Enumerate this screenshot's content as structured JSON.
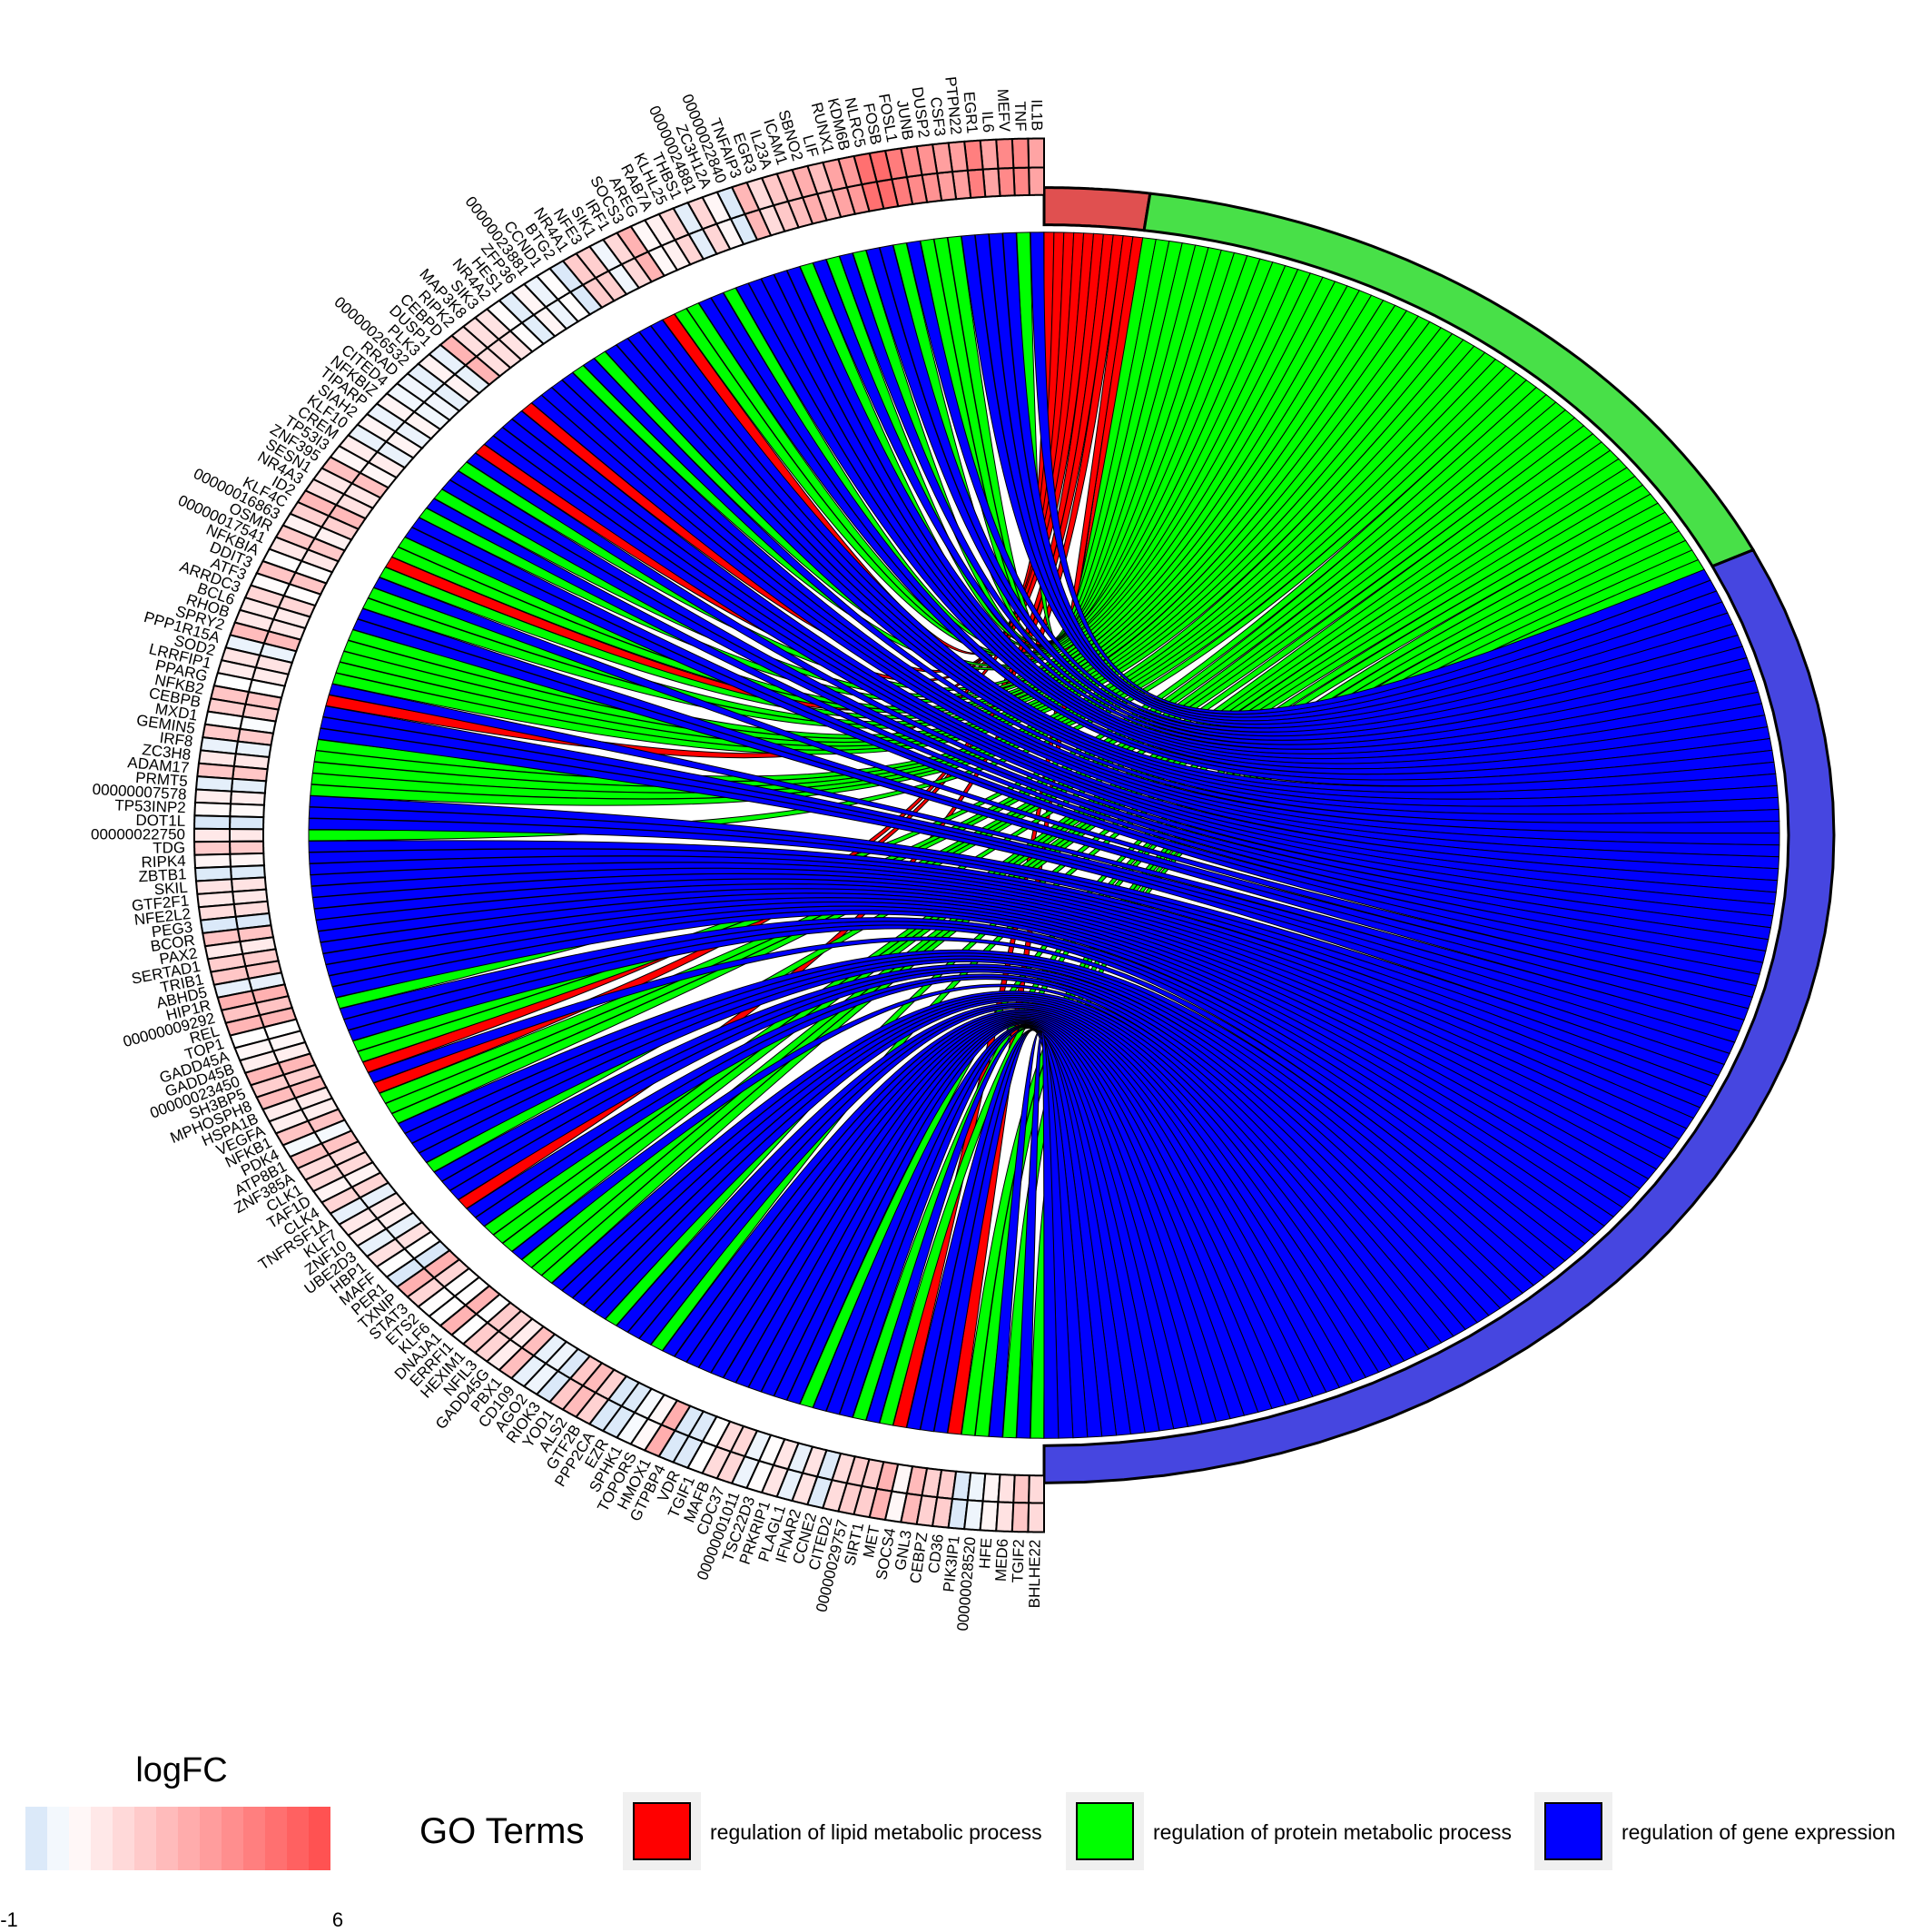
{
  "terms": [
    {
      "name": "regulation of lipid metabolic process",
      "color": "#ff0000",
      "arc_color": "#e05050",
      "gene_count": 18
    },
    {
      "name": "regulation of protein metabolic process",
      "color": "#00ff00",
      "arc_color": "#48e048",
      "gene_count": 131
    },
    {
      "name": "regulation of gene expression",
      "color": "#0000ff",
      "arc_color": "#4646e0",
      "gene_count": 271
    }
  ],
  "genes_top": [
    "IL1B",
    "TNF",
    "MEFV",
    "IL6",
    "EGR1",
    "PTPN22",
    "CSF3",
    "DUSP2",
    "JUNB",
    "FOSL1",
    "FOSB",
    "NLRC5",
    "KDM6B",
    "RUNX1",
    "LIF",
    "SBNO2",
    "ICAM1",
    "IL23A",
    "EGR3",
    "TNFAIP3",
    "00000022840",
    "ZC3H12A",
    "00000024881",
    "THBS1",
    "KLHL25",
    "RAB7A",
    "AREG",
    "SOCS3",
    "IRF1",
    "SIK1",
    "NFE3",
    "NR4A1",
    "BTG2",
    "CCND1",
    "00000023881",
    "ZFP36",
    "HES1",
    "NR4A2",
    "SIK3",
    "MAP3K8",
    "RIPK2",
    "CEBPD",
    "DUSP1",
    "PLK3",
    "00000026532",
    "RRAD",
    "CITED4",
    "NFKBIZ",
    "TIPARP",
    "SIAH2",
    "KLF10",
    "CREM",
    "TP53I3",
    "ZNF395",
    "SESN1",
    "NR4A3",
    "ID2",
    "KLF4C",
    "00000016863",
    "OSMR",
    "00000017541",
    "NFKBIA",
    "DDIT3",
    "ATF3",
    "ARRDC3",
    "BCL6",
    "RHOB",
    "SPRY2",
    "PPP1R15A",
    "SOD2",
    "LRRFIP1",
    "PPARG",
    "NFKB2",
    "CEBPB",
    "MXD1",
    "GEMIN5",
    "IRF8",
    "ZC3H8",
    "ADAM17",
    "PRMT5",
    "00000007578",
    "TP53INP2",
    "DOT1L",
    "00000022750",
    "TDG",
    "RIPK4",
    "ZBTB1",
    "SKIL",
    "GTF2F1",
    "NFE2L2",
    "PEG3",
    "BCOR",
    "PAX2",
    "SERTAD1",
    "TRIB1",
    "ABHD5",
    "HIP1R",
    "00000009292",
    "REL",
    "TOP1",
    "GADD45A",
    "GADD45B",
    "00000023450",
    "SH3BP5",
    "MPHOSPH8",
    "HSPA1B",
    "VEGFA",
    "NFKB1",
    "PDK4",
    "ATP8B1",
    "ZNF385A",
    "CLK1",
    "TAF1D",
    "CLK4",
    "TNFRSF1A",
    "KLF7",
    "ZNF10",
    "UBE2D3",
    "HBP1",
    "MAFF",
    "PER1",
    "TXNIP",
    "STAT3",
    "ETS2",
    "KLF6",
    "DNAJA1",
    "ERRFI1",
    "HEXIM1",
    "NFIL3",
    "GADD45G",
    "PBX1",
    "CD109",
    "AGO2",
    "RIOK3",
    "YOD1",
    "ALS2",
    "GTF2B",
    "PPP2CA",
    "EZR",
    "SPHK1",
    "TOPORS",
    "HMOX1",
    "GTPBP4",
    "VDR",
    "TGIF1",
    "MAFB",
    "CDC37",
    "00000001011",
    "TSC22D3",
    "PRKRIP1",
    "PLAGL1",
    "IFNAR2",
    "CCNE2",
    "CITED2",
    "00000029757",
    "SIRT1",
    "MET",
    "SOCS4",
    "GNL3",
    "CEBPZ",
    "CD36",
    "PIK3IP1",
    "00000028520",
    "HFE",
    "MED6",
    "TGIF2",
    "BHLHE22"
  ],
  "color_scale": {
    "title": "logFC",
    "min": -1,
    "max": 6,
    "min_label": "-1",
    "max_label": "6",
    "low_color": "#cfe2f7",
    "high_color": "#ff4a4a"
  },
  "legend": {
    "title": "GO Terms",
    "items": [
      {
        "label": "regulation of lipid metabolic process",
        "color": "#ff0000"
      },
      {
        "label": "regulation of protein metabolic process",
        "color": "#00ff00"
      },
      {
        "label": "regulation of gene expression",
        "color": "#0000ff"
      }
    ]
  }
}
